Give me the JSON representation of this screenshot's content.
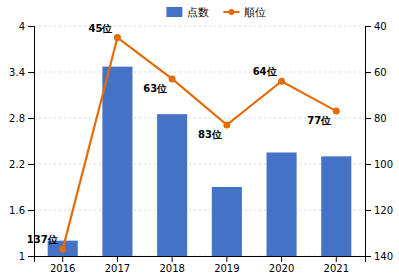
{
  "chart_data": {
    "type": "bar",
    "categories": [
      "2016",
      "2017",
      "2018",
      "2019",
      "2020",
      "2021"
    ],
    "series": [
      {
        "name": "点数",
        "type": "bar",
        "color": "#4472c4",
        "values": [
          1.2,
          3.47,
          2.85,
          1.9,
          2.35,
          2.3
        ]
      },
      {
        "name": "順位",
        "type": "line",
        "axis": "y2",
        "color": "#e36c09",
        "marker": "circle",
        "line_style": "solid",
        "values": [
          137,
          45,
          63,
          83,
          64,
          77
        ],
        "data_labels": true,
        "value_labels": [
          "137位",
          "45位",
          "63位",
          "83位",
          "64位",
          "77位"
        ]
      }
    ],
    "ylim": [
      1.0,
      4.0
    ],
    "yticks": [
      1,
      1.6,
      2.2,
      2.8,
      3.4,
      4
    ],
    "y2lim": [
      140,
      40
    ],
    "y2ticks": [
      40,
      60,
      80,
      100,
      120,
      140
    ],
    "grid": true,
    "legend": "top"
  }
}
